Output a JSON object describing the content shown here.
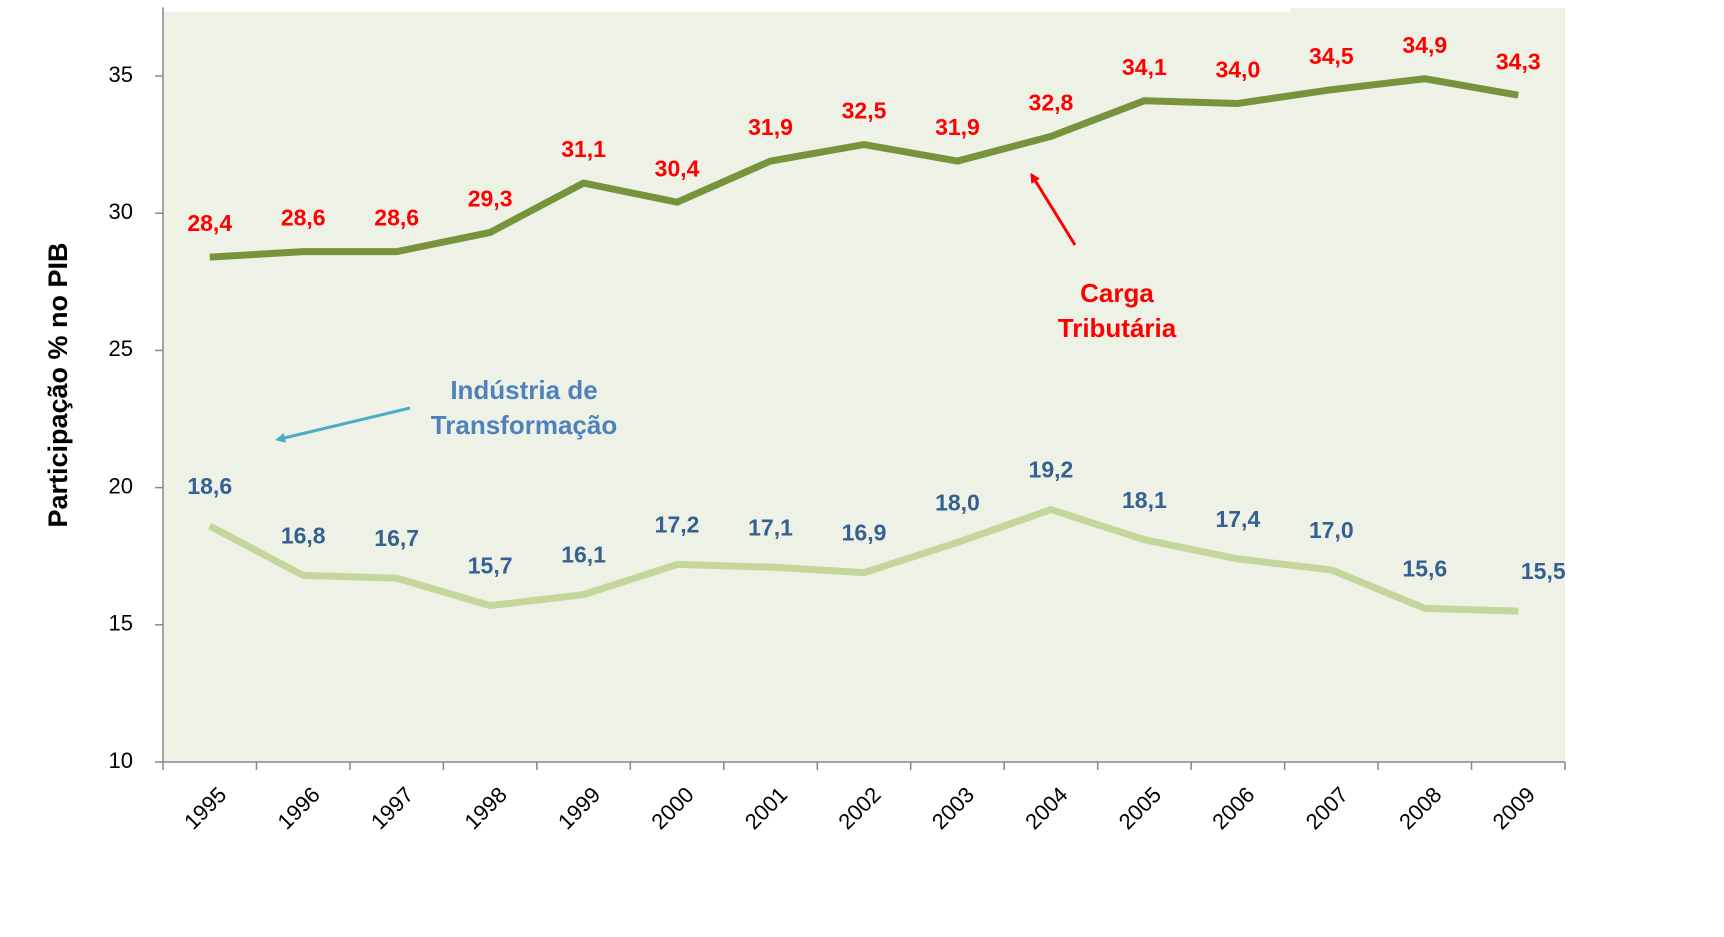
{
  "chart_data": {
    "type": "line",
    "y_label": "Participação % no PIB",
    "categories": [
      "1995",
      "1996",
      "1997",
      "1998",
      "1999",
      "2000",
      "2001",
      "2002",
      "2003",
      "2004",
      "2005",
      "2006",
      "2007",
      "2008",
      "2009"
    ],
    "series": [
      {
        "name": "Carga Tributária",
        "color": "#77933c",
        "label_color": "#ff0000",
        "values": [
          28.4,
          28.6,
          28.6,
          29.3,
          31.1,
          30.4,
          31.9,
          32.5,
          31.9,
          32.8,
          34.1,
          34.0,
          34.5,
          34.9,
          34.3
        ],
        "value_labels": [
          "28,4",
          "28,6",
          "28,6",
          "29,3",
          "31,1",
          "30,4",
          "31,9",
          "32,5",
          "31,9",
          "32,8",
          "34,1",
          "34,0",
          "34,5",
          "34,9",
          "34,3"
        ]
      },
      {
        "name": "Indústria de Transformação",
        "color": "#c3d69b",
        "label_color": "#366092",
        "values": [
          18.6,
          16.8,
          16.7,
          15.7,
          16.1,
          17.2,
          17.1,
          16.9,
          18.0,
          19.2,
          18.1,
          17.4,
          17.0,
          15.6,
          15.5
        ],
        "value_labels": [
          "18,6",
          "16,8",
          "16,7",
          "15,7",
          "16,1",
          "17,2",
          "17,1",
          "16,9",
          "18,0",
          "19,2",
          "18,1",
          "17,4",
          "17,0",
          "15,6",
          "15,5"
        ]
      }
    ],
    "annotations": [
      {
        "lines": [
          "Carga",
          "Tributária"
        ],
        "color": "#ff0000",
        "arrow_color": "#ff0000"
      },
      {
        "lines": [
          "Indústria de",
          "Transformação"
        ],
        "color": "#4f81bd",
        "arrow_color": "#4bacc6"
      }
    ],
    "ylim": [
      10,
      37.5
    ],
    "yticks": [
      10,
      15,
      20,
      25,
      30,
      35
    ],
    "plot_background": "#eef2e6"
  }
}
